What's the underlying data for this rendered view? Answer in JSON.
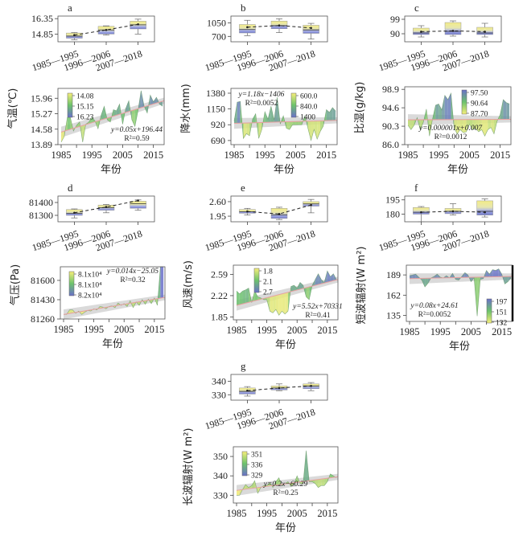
{
  "figure": {
    "xlabel": "年份",
    "xtick_labels": [
      "1985",
      "1995",
      "2005",
      "2015"
    ],
    "period_labels": [
      "1985—1995",
      "1996—2006",
      "2007—2018"
    ]
  },
  "chart_data": [
    {
      "id": "a",
      "type": "area",
      "panel_label": "a",
      "ylabel": "气温(℃)",
      "box": {
        "type": "box",
        "yticks": [
          "14.85",
          "16.35"
        ],
        "ylim": [
          14.1,
          16.6
        ],
        "periods": [
          {
            "min": 14.3,
            "q1": 14.45,
            "median": 14.65,
            "q3": 14.95,
            "max": 15.0,
            "mean": 14.75
          },
          {
            "min": 14.75,
            "q1": 14.85,
            "median": 15.25,
            "q3": 15.6,
            "max": 15.65,
            "mean": 15.25
          },
          {
            "min": 14.85,
            "q1": 15.35,
            "median": 15.75,
            "q3": 16.1,
            "max": 16.3,
            "mean": 15.8
          }
        ]
      },
      "series": {
        "type": "area",
        "yticks": [
          "13.89",
          "14.58",
          "15.27",
          "15.96"
        ],
        "ylim": [
          13.89,
          16.4
        ],
        "x": [
          1985,
          1986,
          1987,
          1988,
          1989,
          1990,
          1991,
          1992,
          1993,
          1994,
          1995,
          1996,
          1997,
          1998,
          1999,
          2000,
          2001,
          2002,
          2003,
          2004,
          2005,
          2006,
          2007,
          2008,
          2009,
          2010,
          2011,
          2012,
          2013,
          2014,
          2015,
          2016,
          2017,
          2018
        ],
        "values": [
          14.0,
          14.25,
          15.1,
          15.1,
          14.5,
          14.75,
          14.9,
          14.0,
          14.8,
          14.9,
          15.1,
          14.95,
          14.6,
          15.2,
          15.6,
          15.0,
          14.9,
          15.45,
          15.4,
          15.7,
          14.8,
          15.5,
          15.85,
          15.0,
          14.7,
          15.4,
          16.3,
          15.6,
          15.3,
          16.1,
          15.8,
          16.0,
          15.7,
          15.6
        ],
        "trend": {
          "slope": 0.05,
          "intercept": 196.44,
          "label": "y=0.05x+196.44",
          "r2_label": "R²=0.59",
          "start": 14.45,
          "end": 15.85
        },
        "colorbar": [
          "14.08",
          "15.15",
          "16.23"
        ],
        "colorbar_position": "top-left",
        "equation_position": "bottom-right"
      }
    },
    {
      "id": "b",
      "type": "area",
      "panel_label": "b",
      "ylabel": "降水(mm)",
      "box": {
        "type": "box",
        "yticks": [
          "700",
          "1050"
        ],
        "ylim": [
          560,
          1230
        ],
        "periods": [
          {
            "min": 720,
            "q1": 790,
            "median": 880,
            "q3": 1010,
            "max": 1120,
            "mean": 940
          },
          {
            "min": 800,
            "q1": 900,
            "median": 980,
            "q3": 1100,
            "max": 1160,
            "mean": 985
          },
          {
            "min": 630,
            "q1": 780,
            "median": 870,
            "q3": 990,
            "max": 1040,
            "mean": 920
          }
        ]
      },
      "series": {
        "type": "area",
        "yticks": [
          "690",
          "920",
          "1150",
          "1380"
        ],
        "ylim": [
          630,
          1450
        ],
        "x": [
          1985,
          1986,
          1987,
          1988,
          1989,
          1990,
          1991,
          1992,
          1993,
          1994,
          1995,
          1996,
          1997,
          1998,
          1999,
          2000,
          2001,
          2002,
          2003,
          2004,
          2005,
          2006,
          2007,
          2008,
          2009,
          2010,
          2011,
          2012,
          2013,
          2014,
          2015,
          2016,
          2017,
          2018
        ],
        "values": [
          970,
          1250,
          1260,
          720,
          790,
          760,
          1000,
          1080,
          720,
          850,
          1110,
          1000,
          1190,
          990,
          1320,
          930,
          1050,
          870,
          850,
          920,
          920,
          920,
          920,
          1050,
          870,
          690,
          850,
          710,
          820,
          900,
          1140,
          1100,
          1170,
          1120
        ],
        "trend": {
          "slope": 1.18,
          "intercept": -1406,
          "label": "y=1.18x−1406",
          "r2_label": "R²=0.0052",
          "start": 940,
          "end": 985
        },
        "colorbar": [
          "600.0",
          "840.0",
          "1400"
        ],
        "colorbar_position": "top-right",
        "equation_position": "top-left"
      }
    },
    {
      "id": "c",
      "type": "area",
      "panel_label": "c",
      "ylabel": "比湿(g/kg)",
      "box": {
        "type": "box",
        "yticks": [
          "90",
          "99"
        ],
        "ylim": [
          85,
          101
        ],
        "periods": [
          {
            "min": 88,
            "q1": 89.5,
            "median": 90.5,
            "q3": 93.5,
            "max": 95,
            "mean": 91.3
          },
          {
            "min": 88.5,
            "q1": 89.5,
            "median": 91.5,
            "q3": 97,
            "max": 98,
            "mean": 91.8
          },
          {
            "min": 88,
            "q1": 89.5,
            "median": 90.5,
            "q3": 94,
            "max": 96.5,
            "mean": 91.3
          }
        ]
      },
      "series": {
        "type": "area",
        "yticks": [
          "86.0",
          "90.3",
          "94.6",
          "98.9"
        ],
        "ylim": [
          86.0,
          99.5
        ],
        "x": [
          1985,
          1986,
          1987,
          1988,
          1989,
          1990,
          1991,
          1992,
          1993,
          1994,
          1995,
          1996,
          1997,
          1998,
          1999,
          2000,
          2001,
          2002,
          2003,
          2004,
          2005,
          2006,
          2007,
          2008,
          2009,
          2010,
          2011,
          2012,
          2013,
          2014,
          2015,
          2016,
          2017,
          2018
        ],
        "values": [
          90.5,
          89.5,
          90.5,
          92.3,
          89.5,
          91.2,
          94.3,
          88.0,
          92.0,
          95.2,
          95.5,
          94.1,
          97.5,
          96.5,
          98.0,
          90.0,
          88.5,
          89.5,
          88.8,
          89.0,
          90.8,
          89.5,
          89.8,
          89.0,
          89.5,
          88.0,
          89.5,
          90.0,
          88.5,
          91.5,
          93.0,
          96.5,
          95.8,
          95.5
        ],
        "trend": {
          "slope": 1e-06,
          "intercept": 0.007,
          "label": "y=0.000001x+0.007",
          "r2_label": "R²=0.0012",
          "start": 91.8,
          "end": 91.9
        },
        "colorbar": [
          "97.50",
          "90.64",
          "87.70"
        ],
        "colorbar_position": "top-right",
        "equation_position": "bottom-center"
      }
    },
    {
      "id": "d",
      "type": "area",
      "panel_label": "d",
      "ylabel": "气压(Pa)",
      "box": {
        "type": "box",
        "yticks": [
          "81300",
          "81400"
        ],
        "ylim": [
          81250,
          81450
        ],
        "periods": [
          {
            "min": 81280,
            "q1": 81300,
            "median": 81315,
            "q3": 81345,
            "max": 81350,
            "mean": 81320
          },
          {
            "min": 81320,
            "q1": 81340,
            "median": 81360,
            "q3": 81380,
            "max": 81385,
            "mean": 81365
          },
          {
            "min": 81340,
            "q1": 81355,
            "median": 81390,
            "q3": 81410,
            "max": 81420,
            "mean": 81415
          }
        ]
      },
      "series": {
        "type": "area",
        "yticks": [
          "81260",
          "81430",
          "81600"
        ],
        "ylim": [
          81260,
          81720
        ],
        "x": [
          1985,
          1986,
          1987,
          1988,
          1989,
          1990,
          1991,
          1992,
          1993,
          1994,
          1995,
          1996,
          1997,
          1998,
          1999,
          2000,
          2001,
          2002,
          2003,
          2004,
          2005,
          2006,
          2007,
          2008,
          2009,
          2010,
          2011,
          2012,
          2013,
          2014,
          2015,
          2016,
          2017,
          2018
        ],
        "values": [
          81300,
          81300,
          81340,
          81340,
          81310,
          81330,
          81300,
          81320,
          81335,
          81330,
          81350,
          81340,
          81370,
          81365,
          81350,
          81370,
          81375,
          81360,
          81400,
          81380,
          81395,
          81370,
          81420,
          81360,
          81410,
          81380,
          81430,
          81390,
          81435,
          81395,
          81445,
          81380,
          81720,
          81720
        ],
        "trend": {
          "slope": 0.014,
          "intercept": -25.05,
          "label": "y=0.014x−25.05",
          "r2_label": "R²=0.32",
          "start": 81300,
          "end": 81450
        },
        "colorbar": [
          "8.1x10⁴",
          "8.1x10⁴",
          "8.2x10⁴"
        ],
        "colorbar_position": "top-left",
        "equation_position": "top-right"
      }
    },
    {
      "id": "e",
      "type": "area",
      "panel_label": "e",
      "ylabel": "风速(m/s)",
      "box": {
        "type": "box",
        "yticks": [
          "1.95",
          "2.60"
        ],
        "ylim": [
          1.7,
          2.85
        ],
        "periods": [
          {
            "min": 2.0,
            "q1": 2.08,
            "median": 2.15,
            "q3": 2.25,
            "max": 2.3,
            "mean": 2.16
          },
          {
            "min": 1.8,
            "q1": 1.85,
            "median": 2.0,
            "q3": 2.3,
            "max": 2.35,
            "mean": 2.05
          },
          {
            "min": 2.1,
            "q1": 2.4,
            "median": 2.5,
            "q3": 2.6,
            "max": 2.7,
            "mean": 2.45
          }
        ]
      },
      "series": {
        "type": "area",
        "yticks": [
          "1.85",
          "2.22",
          "2.59"
        ],
        "ylim": [
          1.8,
          2.75
        ],
        "x": [
          1985,
          1986,
          1987,
          1988,
          1989,
          1990,
          1991,
          1992,
          1993,
          1994,
          1995,
          1996,
          1997,
          1998,
          1999,
          2000,
          2001,
          2002,
          2003,
          2004,
          2005,
          2006,
          2007,
          2008,
          2009,
          2010,
          2011,
          2012,
          2013,
          2014,
          2015,
          2016,
          2017,
          2018
        ],
        "values": [
          2.3,
          2.25,
          2.3,
          2.32,
          2.35,
          2.1,
          2.3,
          2.2,
          2.18,
          2.15,
          2.15,
          1.95,
          1.92,
          1.98,
          1.88,
          1.95,
          1.9,
          1.95,
          2.38,
          2.4,
          2.35,
          2.45,
          2.4,
          2.2,
          2.15,
          2.4,
          2.5,
          2.6,
          2.5,
          2.45,
          2.65,
          2.55,
          2.6,
          2.5
        ],
        "trend": {
          "slope": 5.52,
          "intercept": 70331,
          "label": "y=5.52x+70331",
          "r2_label": "R²=0.41",
          "start": 2.05,
          "end": 2.5
        },
        "colorbar": [
          "1.8",
          "2.1",
          "2.7"
        ],
        "colorbar_position": "top-center",
        "equation_position": "bottom-right"
      }
    },
    {
      "id": "f",
      "type": "area",
      "panel_label": "f",
      "ylabel": "短波辐射(W m²)",
      "box": {
        "type": "box",
        "yticks": [
          "180",
          "195"
        ],
        "ylim": [
          172,
          199
        ],
        "periods": [
          {
            "min": 172,
            "q1": 180,
            "median": 182,
            "q3": 187,
            "max": 188,
            "mean": 182
          },
          {
            "min": 179,
            "q1": 180.5,
            "median": 183,
            "q3": 186,
            "max": 191,
            "mean": 183
          },
          {
            "min": 177,
            "q1": 179,
            "median": 183,
            "q3": 194,
            "max": 196,
            "mean": 182
          }
        ]
      },
      "series": {
        "type": "area",
        "yticks": [
          "135",
          "162",
          "189"
        ],
        "ylim": [
          127,
          202
        ],
        "x": [
          1985,
          1986,
          1987,
          1988,
          1989,
          1990,
          1991,
          1992,
          1993,
          1994,
          1995,
          1996,
          1997,
          1998,
          1999,
          2000,
          2001,
          2002,
          2003,
          2004,
          2005,
          2006,
          2007,
          2008,
          2009,
          2010,
          2011,
          2012,
          2013,
          2014,
          2015,
          2016,
          2017,
          2018
        ],
        "values": [
          188,
          189,
          190,
          186,
          182,
          173,
          178,
          185,
          187,
          190,
          186,
          185,
          188,
          185,
          191,
          183,
          182,
          187,
          192,
          189,
          180,
          185,
          134,
          183,
          184,
          195,
          190,
          196,
          195,
          197,
          190,
          177,
          180,
          185
        ],
        "trend": {
          "slope": 0.08,
          "intercept": 24.61,
          "label": "y=0.08x+24.61",
          "r2_label": "R²=0.0052",
          "start": 184,
          "end": 187
        },
        "colorbar": [
          "197",
          "151",
          "132"
        ],
        "colorbar_position": "bottom-right",
        "equation_position": "bottom-left"
      }
    },
    {
      "id": "g",
      "type": "area",
      "panel_label": "g",
      "ylabel": "长波辐射(W m²)",
      "box": {
        "type": "box",
        "yticks": [
          "330",
          "340"
        ],
        "ylim": [
          326,
          345
        ],
        "periods": [
          {
            "min": 329,
            "q1": 330.5,
            "median": 332.5,
            "q3": 335,
            "max": 336,
            "mean": 333
          },
          {
            "min": 333,
            "q1": 333.5,
            "median": 335,
            "q3": 336.5,
            "max": 338,
            "mean": 335
          },
          {
            "min": 333,
            "q1": 334.5,
            "median": 336.5,
            "q3": 338,
            "max": 339,
            "mean": 336.5
          }
        ]
      },
      "series": {
        "type": "area",
        "yticks": [
          "330",
          "340",
          "350"
        ],
        "ylim": [
          326,
          355
        ],
        "x": [
          1985,
          1986,
          1987,
          1988,
          1989,
          1990,
          1991,
          1992,
          1993,
          1994,
          1995,
          1996,
          1997,
          1998,
          1999,
          2000,
          2001,
          2002,
          2003,
          2004,
          2005,
          2006,
          2007,
          2008,
          2009,
          2010,
          2011,
          2012,
          2013,
          2014,
          2015,
          2016,
          2017,
          2018
        ],
        "values": [
          330,
          330,
          333,
          335.5,
          334,
          335,
          337.5,
          331,
          334,
          335,
          335,
          336.5,
          334,
          337,
          339,
          335,
          336,
          337,
          334.5,
          336,
          340,
          336,
          336,
          353,
          337,
          337,
          336,
          334,
          335,
          335,
          337,
          341,
          340,
          339
        ],
        "trend": {
          "slope": 0.2,
          "intercept": -60.29,
          "label": "y=0.2x−60.29",
          "r2_label": "R²=0.25",
          "start": 332.5,
          "end": 339.5
        },
        "colorbar": [
          "351",
          "336",
          "329"
        ],
        "colorbar_position": "top-left",
        "equation_position": "bottom-center"
      }
    }
  ]
}
